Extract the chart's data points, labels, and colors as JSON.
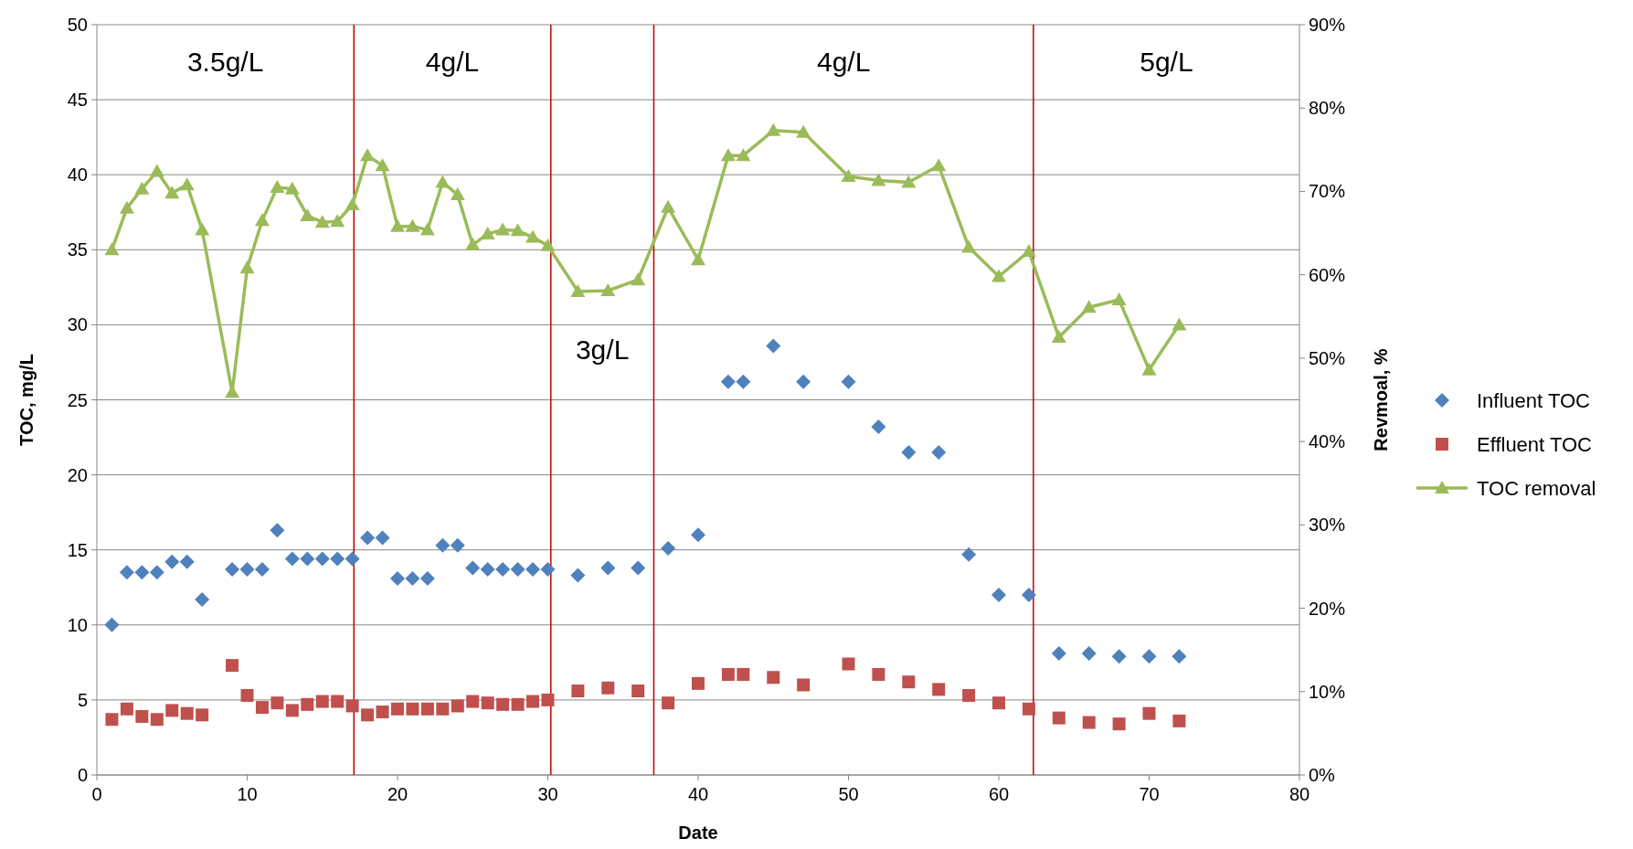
{
  "chart_data": {
    "type": "scatter",
    "xlabel": "Date",
    "ylabel": "TOC, mg/L",
    "y2label": "Revmoal, %",
    "xlim": [
      0,
      80
    ],
    "xticks": [
      0,
      10,
      20,
      30,
      40,
      50,
      60,
      70,
      80
    ],
    "ylim": [
      0,
      50
    ],
    "yticks": [
      0,
      5,
      10,
      15,
      20,
      25,
      30,
      35,
      40,
      45,
      50
    ],
    "y2lim": [
      0,
      90
    ],
    "y2ticks": [
      {
        "value": 0,
        "label": "0%"
      },
      {
        "value": 10,
        "label": "10%"
      },
      {
        "value": 20,
        "label": "20%"
      },
      {
        "value": 30,
        "label": "30%"
      },
      {
        "value": 40,
        "label": "40%"
      },
      {
        "value": 50,
        "label": "50%"
      },
      {
        "value": 60,
        "label": "60%"
      },
      {
        "value": 70,
        "label": "70%"
      },
      {
        "value": 80,
        "label": "80%"
      },
      {
        "value": 90,
        "label": "90%"
      }
    ],
    "grid": "y",
    "legend": "right",
    "x": [
      1,
      2,
      3,
      4,
      5,
      6,
      7,
      9,
      10,
      11,
      12,
      13,
      14,
      15,
      16,
      17,
      18,
      19,
      20,
      21,
      22,
      23,
      24,
      25,
      26,
      27,
      28,
      29,
      30,
      32,
      34,
      36,
      38,
      40,
      42,
      43,
      45,
      47,
      50,
      52,
      54,
      56,
      58,
      60,
      62,
      64,
      66,
      68,
      70,
      72
    ],
    "series": [
      {
        "name": "Influent TOC",
        "marker": "diamond",
        "color": "#4f81bd",
        "values": [
          10,
          13.5,
          13.5,
          13.5,
          14.2,
          14.2,
          11.7,
          13.7,
          13.7,
          13.7,
          16.3,
          14.4,
          14.4,
          14.4,
          14.4,
          14.4,
          15.8,
          15.8,
          13.1,
          13.1,
          13.1,
          15.3,
          15.3,
          13.8,
          13.7,
          13.7,
          13.7,
          13.7,
          13.7,
          13.3,
          13.8,
          13.8,
          15.1,
          16,
          26.2,
          26.2,
          28.6,
          26.2,
          26.2,
          23.2,
          21.5,
          21.5,
          14.7,
          12,
          12,
          8.1,
          8.1,
          7.9,
          7.9,
          7.9
        ]
      },
      {
        "name": "Effluent TOC",
        "marker": "square",
        "color": "#c0504d",
        "values": [
          3.7,
          4.4,
          3.9,
          3.7,
          4.3,
          4.1,
          4,
          7.3,
          5.3,
          4.5,
          4.8,
          4.3,
          4.7,
          4.9,
          4.9,
          4.6,
          4,
          4.2,
          4.4,
          4.4,
          4.4,
          4.4,
          4.6,
          4.9,
          4.8,
          4.7,
          4.7,
          4.9,
          5,
          5.6,
          5.8,
          5.6,
          4.8,
          6.1,
          6.7,
          6.7,
          6.5,
          6,
          7.4,
          6.7,
          6.2,
          5.7,
          5.3,
          4.8,
          4.4,
          3.8,
          3.5,
          3.4,
          4.1,
          3.6
        ]
      },
      {
        "name": "TOC removal",
        "type": "line",
        "axis": "y2",
        "marker": "triangle",
        "color": "#9bbb59",
        "values": [
          63,
          68,
          70.3,
          72.4,
          69.8,
          70.8,
          65.4,
          45.9,
          60.8,
          66.5,
          70.5,
          70.3,
          67.1,
          66.3,
          66.4,
          68.4,
          74.3,
          73.1,
          65.8,
          65.8,
          65.4,
          71.1,
          69.6,
          63.6,
          64.9,
          65.4,
          65.3,
          64.5,
          63.5,
          58,
          58.1,
          59.4,
          68.1,
          61.8,
          74.3,
          74.3,
          77.3,
          77.1,
          71.8,
          71.3,
          71.1,
          73.1,
          63.3,
          59.8,
          62.8,
          52.5,
          56.1,
          57,
          48.6,
          54
        ]
      }
    ],
    "ref_lines": [
      {
        "axis": "x",
        "value": 17.1,
        "color": "#c00000"
      },
      {
        "axis": "x",
        "value": 30.2,
        "color": "#c00000"
      },
      {
        "axis": "x",
        "value": 37.05,
        "color": "#c00000"
      },
      {
        "axis": "x",
        "value": 62.3,
        "color": "#c00000"
      }
    ],
    "annotations": [
      "3.5g/L",
      "4g/L",
      "3g/L",
      "4g/L",
      "5g/L"
    ]
  }
}
